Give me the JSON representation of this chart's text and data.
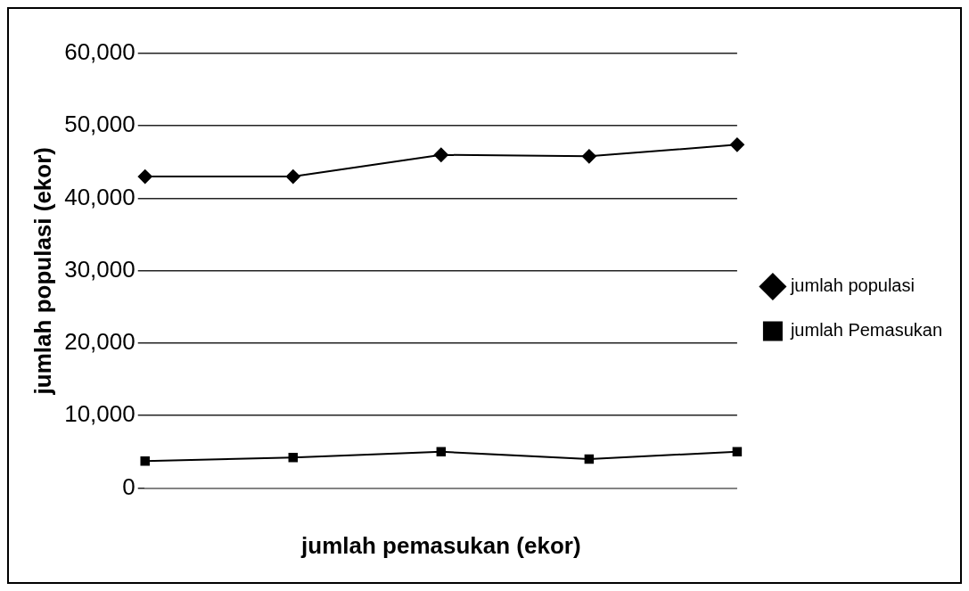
{
  "chart_data": {
    "type": "line",
    "xlabel": "jumlah pemasukan (ekor)",
    "ylabel": "jumlah populasi (ekor)",
    "categories": [
      null,
      null,
      null,
      null,
      null
    ],
    "series": [
      {
        "name": "jumlah populasi",
        "color": "#000000",
        "marker": "diamond",
        "values": [
          43000,
          43000,
          46000,
          45800,
          47400
        ]
      },
      {
        "name": "jumlah Pemasukan",
        "color": "#000000",
        "marker": "square",
        "values": [
          3700,
          4200,
          5000,
          4000,
          5000
        ]
      }
    ],
    "ylim": [
      0,
      60000
    ],
    "yticks": [
      {
        "value": 0,
        "label": "0"
      },
      {
        "value": 10000,
        "label": "10,000"
      },
      {
        "value": 20000,
        "label": "20,000"
      },
      {
        "value": 30000,
        "label": "30,000"
      },
      {
        "value": 40000,
        "label": "40,000"
      },
      {
        "value": 50000,
        "label": "50,000"
      },
      {
        "value": 60000,
        "label": "60,000"
      }
    ],
    "grid": "y",
    "legend": "right"
  }
}
